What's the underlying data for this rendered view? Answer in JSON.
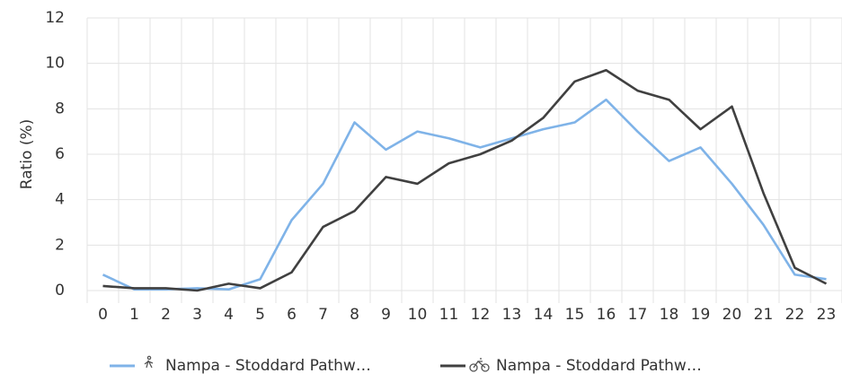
{
  "chart_data": {
    "type": "line",
    "y_label": "Ratio (%)",
    "categories": [
      "0",
      "1",
      "2",
      "3",
      "4",
      "5",
      "6",
      "7",
      "8",
      "9",
      "10",
      "11",
      "12",
      "13",
      "14",
      "15",
      "16",
      "17",
      "18",
      "19",
      "20",
      "21",
      "22",
      "23"
    ],
    "series": [
      {
        "name": "Nampa - Stoddard Pathw…",
        "color": "#7fb3e8",
        "values": [
          0.7,
          0.05,
          0.05,
          0.1,
          0.05,
          0.5,
          3.1,
          4.7,
          7.4,
          6.2,
          7.0,
          6.7,
          6.3,
          6.7,
          7.1,
          7.4,
          8.4,
          7.0,
          5.7,
          6.3,
          4.7,
          2.9,
          0.7,
          0.5
        ]
      },
      {
        "name": "Nampa - Stoddard Pathw…",
        "color": "#404040",
        "values": [
          0.2,
          0.1,
          0.1,
          0.0,
          0.3,
          0.1,
          0.8,
          2.8,
          3.5,
          5.0,
          4.7,
          5.6,
          6.0,
          6.6,
          7.6,
          9.2,
          9.7,
          8.8,
          8.4,
          7.1,
          8.1,
          4.3,
          1.0,
          0.3
        ]
      }
    ],
    "ylim": [
      0,
      12
    ],
    "yticks": [
      0,
      2,
      4,
      6,
      8,
      10,
      12
    ],
    "grid": true,
    "legend": "bottom"
  }
}
